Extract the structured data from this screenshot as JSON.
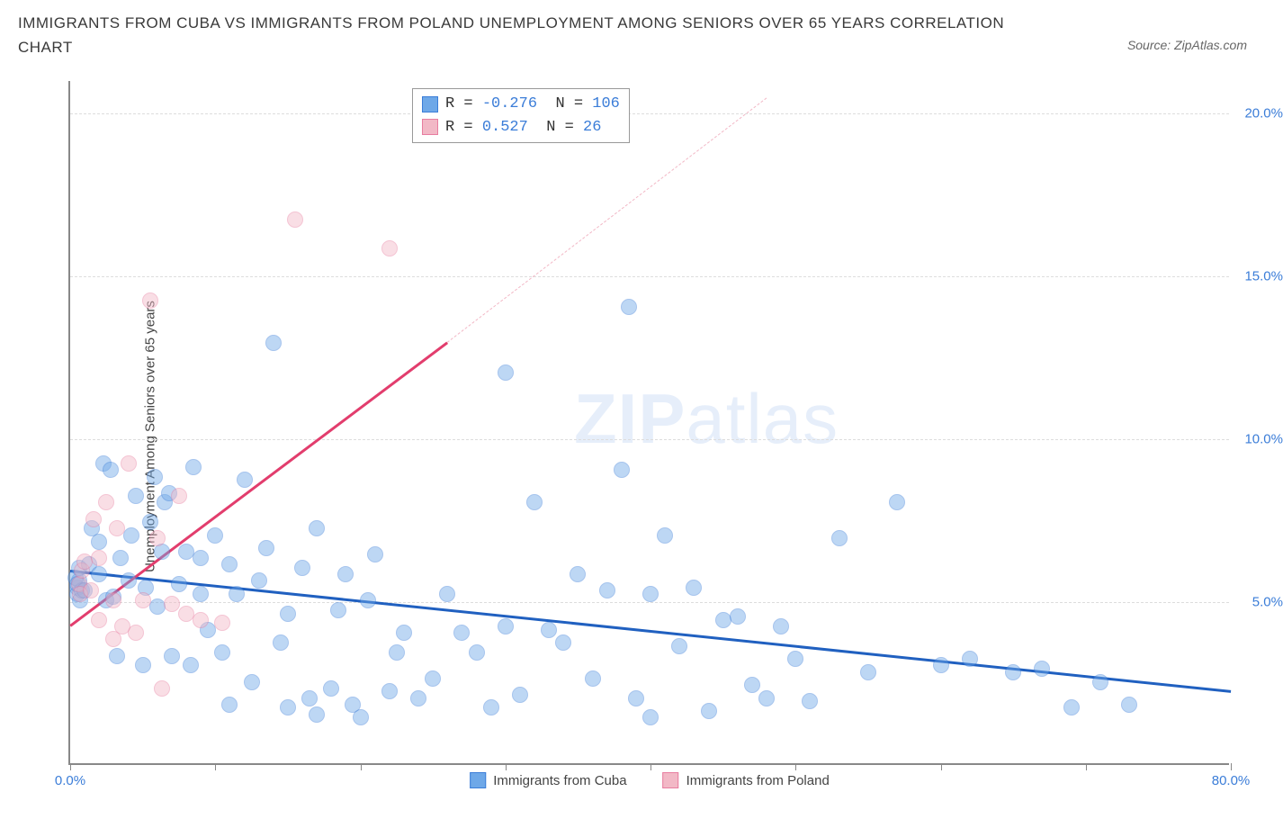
{
  "title": "IMMIGRANTS FROM CUBA VS IMMIGRANTS FROM POLAND UNEMPLOYMENT AMONG SENIORS OVER 65 YEARS CORRELATION CHART",
  "source": "Source: ZipAtlas.com",
  "y_axis_label": "Unemployment Among Seniors over 65 years",
  "watermark_a": "ZIP",
  "watermark_b": "atlas",
  "chart": {
    "type": "scatter",
    "xlim": [
      0,
      80
    ],
    "ylim": [
      0,
      21
    ],
    "x_ticks_major": [
      0,
      10,
      20,
      30,
      40,
      50,
      60,
      70,
      80
    ],
    "x_tick_labels": {
      "0": "0.0%",
      "80": "80.0%"
    },
    "y_ticks": [
      5,
      10,
      15,
      20
    ],
    "y_tick_labels": {
      "5": "5.0%",
      "10": "10.0%",
      "15": "15.0%",
      "20": "20.0%"
    },
    "background_color": "#ffffff",
    "grid_color": "#dddddd",
    "axis_color": "#888888",
    "tick_label_color": "#3b7dd8",
    "point_radius": 9,
    "point_opacity": 0.45,
    "series": [
      {
        "name": "Immigrants from Cuba",
        "color": "#6ea8e8",
        "stroke": "#3b7dd8",
        "trend": {
          "x1": 0,
          "y1": 6.0,
          "x2": 80,
          "y2": 2.3,
          "color": "#2060c0",
          "width": 3,
          "dash": "solid"
        },
        "R": "-0.276",
        "N": "106",
        "points": [
          [
            0.5,
            5.4
          ],
          [
            0.6,
            5.6
          ],
          [
            0.5,
            5.2
          ],
          [
            0.7,
            5.0
          ],
          [
            0.4,
            5.7
          ],
          [
            0.6,
            6.0
          ],
          [
            0.8,
            5.3
          ],
          [
            0.5,
            5.5
          ],
          [
            1.0,
            5.3
          ],
          [
            1.3,
            6.1
          ],
          [
            1.5,
            7.2
          ],
          [
            2.0,
            6.8
          ],
          [
            2.0,
            5.8
          ],
          [
            2.3,
            9.2
          ],
          [
            2.5,
            5.0
          ],
          [
            2.8,
            9.0
          ],
          [
            3.0,
            5.1
          ],
          [
            3.2,
            3.3
          ],
          [
            3.5,
            6.3
          ],
          [
            4.0,
            5.6
          ],
          [
            4.2,
            7.0
          ],
          [
            4.5,
            8.2
          ],
          [
            5.0,
            3.0
          ],
          [
            5.2,
            5.4
          ],
          [
            5.5,
            7.4
          ],
          [
            5.8,
            8.8
          ],
          [
            6.0,
            4.8
          ],
          [
            6.3,
            6.5
          ],
          [
            6.5,
            8.0
          ],
          [
            6.8,
            8.3
          ],
          [
            7.0,
            3.3
          ],
          [
            7.5,
            5.5
          ],
          [
            8.0,
            6.5
          ],
          [
            8.3,
            3.0
          ],
          [
            8.5,
            9.1
          ],
          [
            9.0,
            5.2
          ],
          [
            9.0,
            6.3
          ],
          [
            9.5,
            4.1
          ],
          [
            10.0,
            7.0
          ],
          [
            10.5,
            3.4
          ],
          [
            11.0,
            6.1
          ],
          [
            11.0,
            1.8
          ],
          [
            11.5,
            5.2
          ],
          [
            12.0,
            8.7
          ],
          [
            12.5,
            2.5
          ],
          [
            13.0,
            5.6
          ],
          [
            13.5,
            6.6
          ],
          [
            14.0,
            12.9
          ],
          [
            14.5,
            3.7
          ],
          [
            15.0,
            1.7
          ],
          [
            15.0,
            4.6
          ],
          [
            16.0,
            6.0
          ],
          [
            16.5,
            2.0
          ],
          [
            17.0,
            7.2
          ],
          [
            17.0,
            1.5
          ],
          [
            18.0,
            2.3
          ],
          [
            18.5,
            4.7
          ],
          [
            19.0,
            5.8
          ],
          [
            19.5,
            1.8
          ],
          [
            20.0,
            1.4
          ],
          [
            20.5,
            5.0
          ],
          [
            21.0,
            6.4
          ],
          [
            22.0,
            2.2
          ],
          [
            22.5,
            3.4
          ],
          [
            23.0,
            4.0
          ],
          [
            24.0,
            2.0
          ],
          [
            25.0,
            2.6
          ],
          [
            26.0,
            5.2
          ],
          [
            27.0,
            4.0
          ],
          [
            28.0,
            3.4
          ],
          [
            29.0,
            1.7
          ],
          [
            30.0,
            12.0
          ],
          [
            30.0,
            4.2
          ],
          [
            31.0,
            2.1
          ],
          [
            32.0,
            8.0
          ],
          [
            33.0,
            4.1
          ],
          [
            34.0,
            3.7
          ],
          [
            35.0,
            5.8
          ],
          [
            36.0,
            2.6
          ],
          [
            37.0,
            5.3
          ],
          [
            38.0,
            9.0
          ],
          [
            38.5,
            14.0
          ],
          [
            39.0,
            2.0
          ],
          [
            40.0,
            5.2
          ],
          [
            40.0,
            1.4
          ],
          [
            41.0,
            7.0
          ],
          [
            42.0,
            3.6
          ],
          [
            43.0,
            5.4
          ],
          [
            44.0,
            1.6
          ],
          [
            45.0,
            4.4
          ],
          [
            46.0,
            4.5
          ],
          [
            47.0,
            2.4
          ],
          [
            48.0,
            2.0
          ],
          [
            49.0,
            4.2
          ],
          [
            50.0,
            3.2
          ],
          [
            51.0,
            1.9
          ],
          [
            53.0,
            6.9
          ],
          [
            55.0,
            2.8
          ],
          [
            57.0,
            8.0
          ],
          [
            60.0,
            3.0
          ],
          [
            62.0,
            3.2
          ],
          [
            65.0,
            2.8
          ],
          [
            67.0,
            2.9
          ],
          [
            69.0,
            1.7
          ],
          [
            71.0,
            2.5
          ],
          [
            73.0,
            1.8
          ]
        ]
      },
      {
        "name": "Immigrants from Poland",
        "color": "#f2b8c6",
        "stroke": "#e87da0",
        "trend_solid": {
          "x1": 0,
          "y1": 4.3,
          "x2": 26,
          "y2": 13.0,
          "color": "#e23d6d",
          "width": 2.5,
          "dash": "solid"
        },
        "trend_dash": {
          "x1": 26,
          "y1": 13.0,
          "x2": 48,
          "y2": 20.5,
          "color": "#f2b8c6",
          "width": 1.5,
          "dash": "dashed"
        },
        "R": "0.527",
        "N": "26",
        "points": [
          [
            0.6,
            5.5
          ],
          [
            0.7,
            5.2
          ],
          [
            0.8,
            5.9
          ],
          [
            1.0,
            6.2
          ],
          [
            1.4,
            5.3
          ],
          [
            1.6,
            7.5
          ],
          [
            2.0,
            6.3
          ],
          [
            2.0,
            4.4
          ],
          [
            2.5,
            8.0
          ],
          [
            3.0,
            5.0
          ],
          [
            3.0,
            3.8
          ],
          [
            3.2,
            7.2
          ],
          [
            3.6,
            4.2
          ],
          [
            4.0,
            9.2
          ],
          [
            4.5,
            4.0
          ],
          [
            5.0,
            5.0
          ],
          [
            5.5,
            14.2
          ],
          [
            6.0,
            6.9
          ],
          [
            6.3,
            2.3
          ],
          [
            7.0,
            4.9
          ],
          [
            7.5,
            8.2
          ],
          [
            8.0,
            4.6
          ],
          [
            9.0,
            4.4
          ],
          [
            10.5,
            4.3
          ],
          [
            15.5,
            16.7
          ],
          [
            22.0,
            15.8
          ]
        ]
      }
    ]
  },
  "legend": {
    "cuba": "Immigrants from Cuba",
    "poland": "Immigrants from Poland"
  },
  "stats_labels": {
    "R": "R =",
    "N": "N ="
  }
}
